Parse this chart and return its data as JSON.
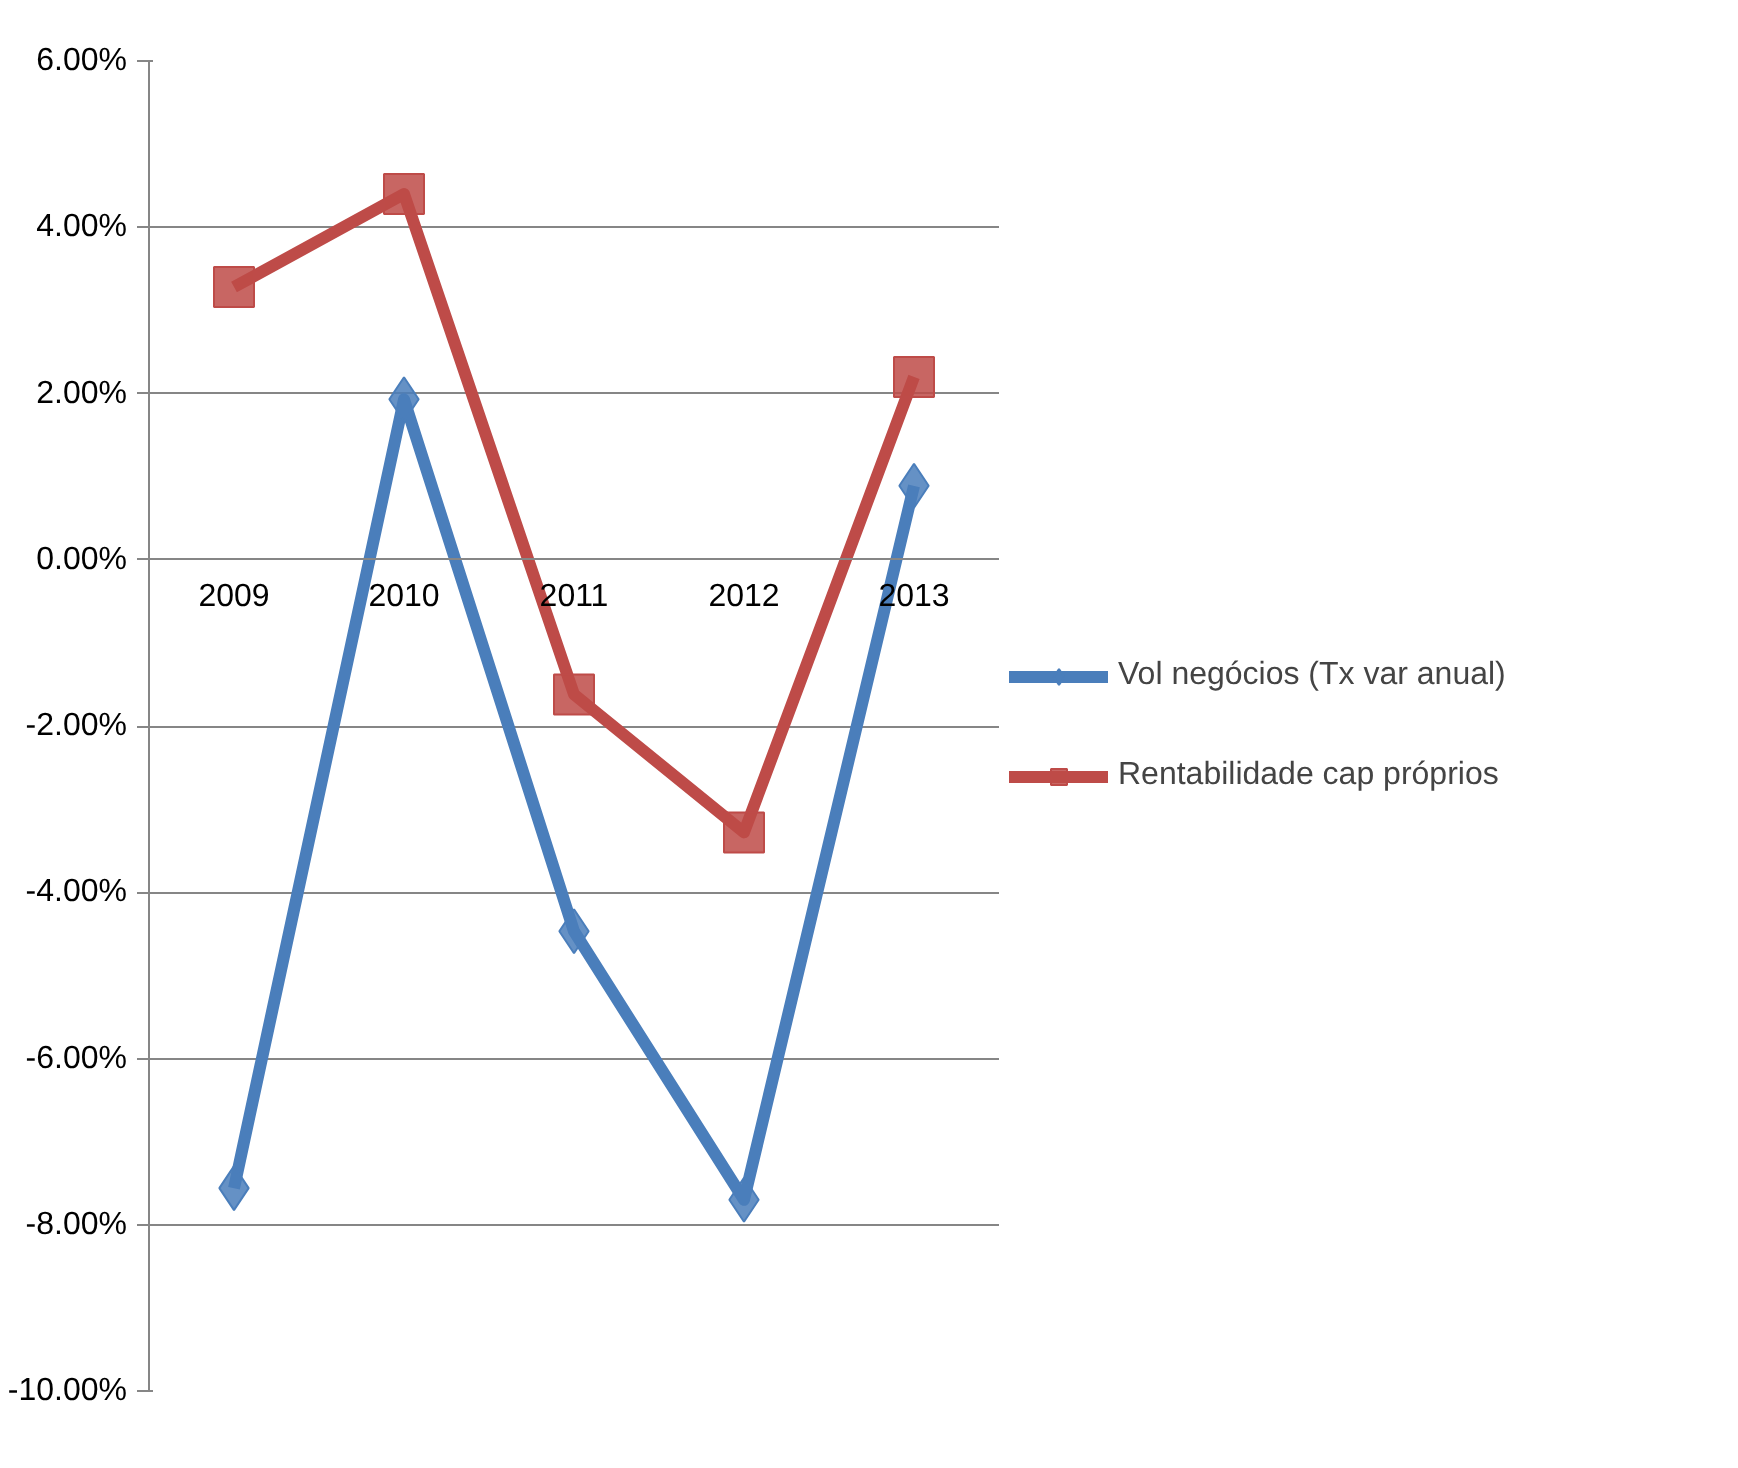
{
  "chart_data": {
    "type": "line",
    "categories": [
      "2009",
      "2010",
      "2011",
      "2012",
      "2013"
    ],
    "series": [
      {
        "name": "Vol negócios (Tx var anual)",
        "color": "#4a7ebb",
        "marker": "diamond",
        "values": [
          -7.56,
          1.93,
          -4.47,
          -7.7,
          0.89
        ]
      },
      {
        "name": "Rentabilidade cap próprios",
        "color": "#be4b48",
        "marker": "square",
        "values": [
          3.28,
          4.4,
          -1.62,
          -3.28,
          2.2
        ]
      }
    ],
    "ylim": [
      -10,
      6
    ],
    "yticks": [
      {
        "value": -10,
        "label": "-10.00%"
      },
      {
        "value": -8,
        "label": "-8.00%"
      },
      {
        "value": -6,
        "label": "-6.00%"
      },
      {
        "value": -4,
        "label": "-4.00%"
      },
      {
        "value": -2,
        "label": "-2.00%"
      },
      {
        "value": 0,
        "label": "0.00%"
      },
      {
        "value": 2,
        "label": "2.00%"
      },
      {
        "value": 4,
        "label": "4.00%"
      },
      {
        "value": 6,
        "label": "6.00%"
      }
    ],
    "grid": "y",
    "legend": "right",
    "line_style": "solid"
  }
}
